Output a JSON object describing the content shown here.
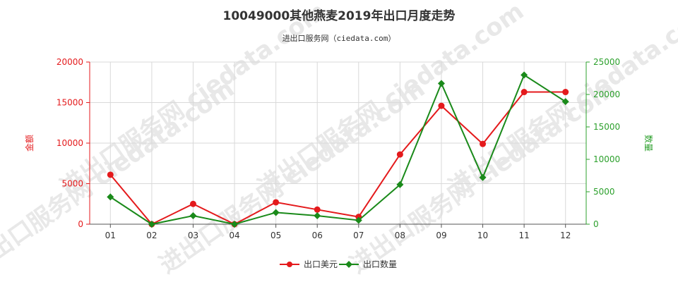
{
  "chart_data": {
    "type": "line",
    "title": "10049000其他燕麦2019年出口月度走势",
    "subtitle": "进出口服务网（ciedata.com）",
    "categories": [
      "01",
      "02",
      "03",
      "04",
      "05",
      "06",
      "07",
      "08",
      "09",
      "10",
      "11",
      "12"
    ],
    "y_left": {
      "label": "金额",
      "ylim": [
        0,
        20000
      ],
      "ticks": [
        0,
        5000,
        10000,
        15000,
        20000
      ],
      "color": "#e41a1c"
    },
    "y_right": {
      "label": "数量",
      "ylim": [
        0,
        25000
      ],
      "ticks": [
        0,
        5000,
        10000,
        15000,
        20000,
        25000
      ],
      "color": "#2ca02c"
    },
    "series": [
      {
        "name": "出口美元",
        "axis": "left",
        "color": "#e41a1c",
        "marker": "circle",
        "values": [
          6100,
          0,
          2500,
          0,
          2700,
          1800,
          900,
          8600,
          14600,
          9900,
          16300,
          16300
        ]
      },
      {
        "name": "出口数量",
        "axis": "right",
        "color": "#1a8a1a",
        "marker": "diamond",
        "values": [
          4200,
          0,
          1300,
          0,
          1800,
          1300,
          600,
          6100,
          21700,
          7200,
          23000,
          18900
        ]
      }
    ],
    "grid": true,
    "legend": "bottom-center",
    "watermark": "进出口服务网 ciedata.com"
  }
}
